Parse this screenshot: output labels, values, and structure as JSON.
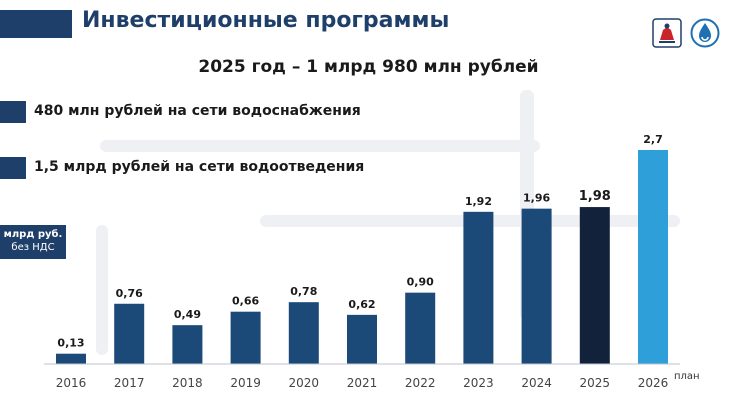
{
  "header": {
    "title": "Инвестиционные программы"
  },
  "subtitle": "2025 год – 1 млрд 980 млн рублей",
  "bullets": [
    {
      "text": "480 млн рублей на сети водоснабжения"
    },
    {
      "text": "1,5 млрд рублей на сети водоотведения"
    }
  ],
  "unit_box": {
    "line1": "млрд руб.",
    "line2": "без НДС"
  },
  "plan_note": "план",
  "logos": [
    {
      "icon": "city-emblem-icon"
    },
    {
      "icon": "water-utility-logo-icon"
    }
  ],
  "colors": {
    "accent": "#1f3f6b",
    "bar": "#1b4a78",
    "bar_current": "#12223b",
    "bar_plan": "#2e9fd9"
  },
  "chart_data": {
    "type": "bar",
    "categories": [
      "2016",
      "2017",
      "2018",
      "2019",
      "2020",
      "2021",
      "2022",
      "2023",
      "2024",
      "2025",
      "2026"
    ],
    "values": [
      0.13,
      0.76,
      0.49,
      0.66,
      0.78,
      0.62,
      0.9,
      1.92,
      1.96,
      1.98,
      2.7
    ],
    "value_labels": [
      "0,13",
      "0,76",
      "0,49",
      "0,66",
      "0,78",
      "0,62",
      "0,90",
      "1,92",
      "1,96",
      "1,98",
      "2,7"
    ],
    "highlight_index": 9,
    "plan_index": 10,
    "ylim": [
      0,
      2.7
    ],
    "grid": false,
    "title": "",
    "xlabel": "",
    "ylabel": ""
  }
}
